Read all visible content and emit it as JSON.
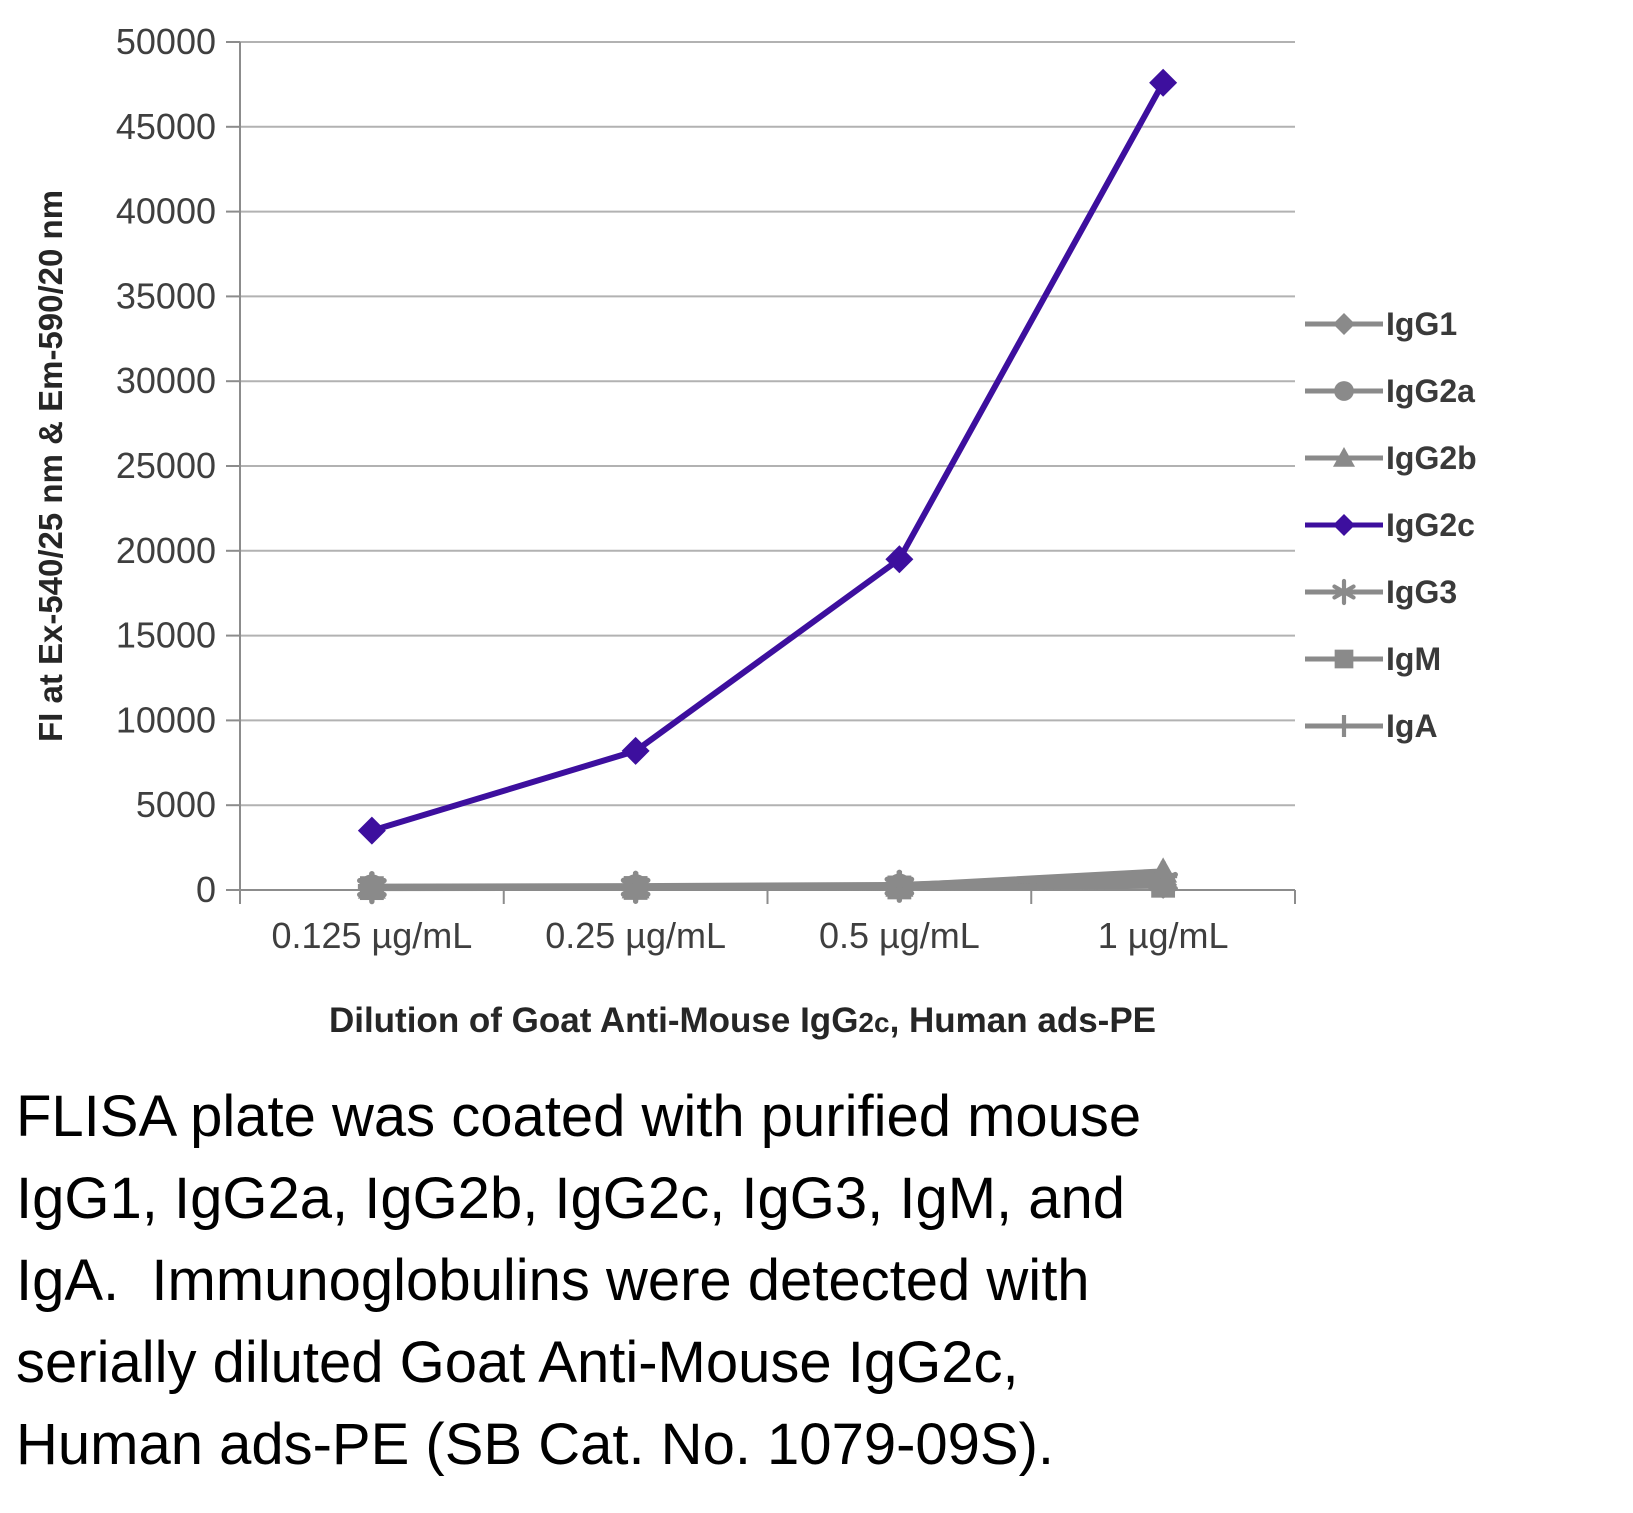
{
  "chart_data": {
    "type": "line",
    "title": "",
    "categories": [
      "0.125 µg/mL",
      "0.25 µg/mL",
      "0.5 µg/mL",
      "1 µg/mL"
    ],
    "series": [
      {
        "name": "IgG1",
        "marker": "diamond",
        "color": "#8a8a8a",
        "values": [
          120,
          130,
          160,
          300
        ]
      },
      {
        "name": "IgG2a",
        "marker": "circle",
        "color": "#8a8a8a",
        "values": [
          180,
          190,
          230,
          380
        ]
      },
      {
        "name": "IgG2b",
        "marker": "triangle",
        "color": "#8a8a8a",
        "values": [
          150,
          170,
          260,
          1100
        ]
      },
      {
        "name": "IgG2c",
        "marker": "diamond",
        "color": "#3d0f9e",
        "values": [
          3500,
          8200,
          19500,
          47600
        ]
      },
      {
        "name": "IgG3",
        "marker": "asterisk",
        "color": "#8a8a8a",
        "values": [
          140,
          160,
          220,
          500
        ]
      },
      {
        "name": "IgM",
        "marker": "square",
        "color": "#8a8a8a",
        "values": [
          110,
          120,
          150,
          250
        ]
      },
      {
        "name": "IgA",
        "marker": "plus",
        "color": "#8a8a8a",
        "values": [
          200,
          230,
          300,
          850
        ]
      }
    ],
    "ylabel": "FI at Ex-540/25 nm & Em-590/20 nm",
    "xlabel": "Dilution of Goat Anti-Mouse IgG2c, Human ads-PE",
    "xlabel_parts": [
      {
        "text": "Dilution of Goat Anti-Mouse IgG",
        "small": false
      },
      {
        "text": "2c",
        "small": true
      },
      {
        "text": ", Human ads-PE",
        "small": false
      }
    ],
    "ylim": [
      0,
      50000
    ],
    "ytick_step": 5000,
    "grid": true,
    "legend_position": "right",
    "legend_entries": [
      "IgG1",
      "IgG2a",
      "IgG2b",
      "IgG2c",
      "IgG3",
      "IgM",
      "IgA"
    ]
  },
  "caption": {
    "text": "FLISA plate was coated with purified mouse IgG1, IgG2a, IgG2b, IgG2c, IgG3, IgM, and IgA.  Immunoglobulins were detected with serially diluted Goat Anti-Mouse IgG2c, Human ads-PE (SB Cat. No. 1079-09S).",
    "lines": [
      "FLISA plate was coated with purified mouse",
      "IgG1, IgG2a, IgG2b, IgG2c, IgG3, IgM, and",
      "IgA.  Immunoglobulins were detected with",
      "serially diluted Goat Anti-Mouse IgG2c,",
      "Human ads-PE (SB Cat. No. 1079-09S)."
    ]
  }
}
